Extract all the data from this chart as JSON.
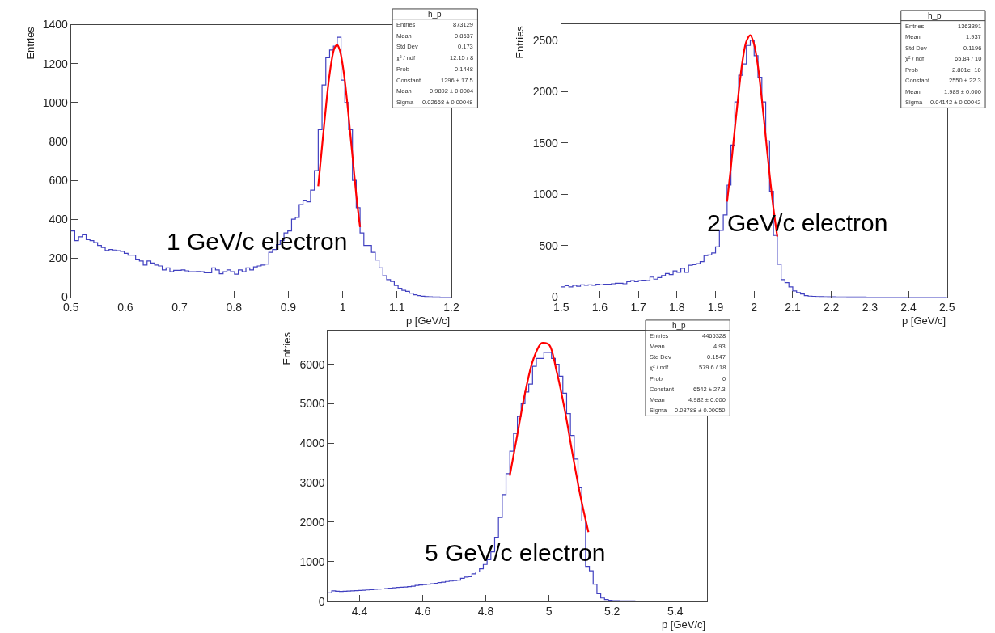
{
  "chart_data": [
    {
      "type": "histogram",
      "xlabel": "p [GeV/c]",
      "ylabel": "Entries",
      "color": "#4040c0",
      "xlim": [
        0.5,
        1.2
      ],
      "ylim": [
        0,
        1400
      ],
      "xticks": [
        0.5,
        0.6,
        0.7,
        0.8,
        0.9,
        1,
        1.1,
        1.2
      ],
      "yticks": [
        0,
        200,
        400,
        600,
        800,
        1000,
        1200,
        1400
      ],
      "bins": [
        0.5,
        0.507,
        0.514,
        0.521,
        0.528,
        0.535,
        0.542,
        0.549,
        0.556,
        0.563,
        0.57,
        0.577,
        0.584,
        0.591,
        0.598,
        0.605,
        0.612,
        0.619,
        0.626,
        0.633,
        0.64,
        0.647,
        0.654,
        0.661,
        0.668,
        0.675,
        0.682,
        0.689,
        0.696,
        0.703,
        0.71,
        0.717,
        0.724,
        0.731,
        0.738,
        0.745,
        0.752,
        0.759,
        0.766,
        0.773,
        0.78,
        0.787,
        0.794,
        0.801,
        0.808,
        0.815,
        0.822,
        0.829,
        0.836,
        0.843,
        0.85,
        0.857,
        0.864,
        0.871,
        0.878,
        0.885,
        0.892,
        0.899,
        0.906,
        0.913,
        0.92,
        0.927,
        0.934,
        0.941,
        0.948,
        0.955,
        0.962,
        0.969,
        0.976,
        0.983,
        0.99,
        0.997,
        1.004,
        1.011,
        1.018,
        1.025,
        1.032,
        1.039,
        1.046,
        1.053,
        1.06,
        1.067,
        1.074,
        1.081,
        1.088,
        1.095,
        1.102,
        1.109,
        1.116,
        1.123,
        1.13,
        1.137,
        1.144,
        1.151,
        1.158,
        1.165,
        1.172,
        1.179,
        1.186,
        1.193,
        1.2
      ],
      "values": [
        340,
        290,
        310,
        320,
        295,
        290,
        280,
        265,
        255,
        240,
        245,
        242,
        238,
        235,
        225,
        215,
        215,
        195,
        185,
        165,
        185,
        175,
        165,
        160,
        140,
        150,
        130,
        138,
        138,
        140,
        135,
        130,
        130,
        132,
        130,
        125,
        125,
        150,
        140,
        120,
        130,
        140,
        130,
        118,
        140,
        130,
        150,
        140,
        155,
        160,
        165,
        170,
        230,
        245,
        270,
        290,
        330,
        340,
        400,
        410,
        475,
        495,
        490,
        550,
        650,
        860,
        1090,
        1230,
        1270,
        1290,
        1335,
        1115,
        1000,
        860,
        600,
        460,
        330,
        265,
        265,
        230,
        190,
        150,
        110,
        90,
        80,
        60,
        45,
        35,
        30,
        20,
        12,
        8,
        5,
        3,
        2,
        1,
        1,
        0,
        0,
        0
      ],
      "series": [
        {
          "type": "line",
          "color": "#ff0000",
          "x": [
            0.955,
            0.96,
            0.965,
            0.97,
            0.975,
            0.98,
            0.985,
            0.99,
            0.995,
            1.0,
            1.005,
            1.01,
            1.015,
            1.02,
            1.025,
            1.03,
            1.032
          ],
          "values": [
            570,
            715,
            860,
            1000,
            1125,
            1220,
            1280,
            1296,
            1266,
            1193,
            1088,
            955,
            812,
            670,
            526,
            405,
            360
          ]
        }
      ],
      "annotations": [
        "h_p",
        "Entries",
        "873129",
        "Mean",
        "0.8637",
        "Std Dev",
        "0.173",
        "χ² / ndf",
        "12.15 / 8",
        "Prob",
        "0.1448",
        "Constant",
        "1296 ± 17.5",
        "Mean",
        "0.9892 ± 0.0004",
        "Sigma",
        "0.02668 ± 0.00048",
        "1 GeV/c electron"
      ]
    },
    {
      "type": "histogram",
      "xlabel": "p [GeV/c]",
      "ylabel": "Entries",
      "color": "#4040c0",
      "xlim": [
        1.5,
        2.5
      ],
      "ylim": [
        0,
        2660
      ],
      "xticks": [
        1.5,
        1.6,
        1.7,
        1.8,
        1.9,
        2,
        2.1,
        2.2,
        2.3,
        2.4,
        2.5
      ],
      "yticks": [
        0,
        500,
        1000,
        1500,
        2000,
        2500
      ],
      "bins": [
        1.5,
        1.51,
        1.52,
        1.53,
        1.54,
        1.55,
        1.56,
        1.57,
        1.58,
        1.59,
        1.6,
        1.61,
        1.62,
        1.63,
        1.64,
        1.65,
        1.66,
        1.67,
        1.68,
        1.69,
        1.7,
        1.71,
        1.72,
        1.73,
        1.74,
        1.75,
        1.76,
        1.77,
        1.78,
        1.79,
        1.8,
        1.81,
        1.82,
        1.83,
        1.84,
        1.85,
        1.86,
        1.87,
        1.88,
        1.89,
        1.9,
        1.91,
        1.92,
        1.93,
        1.94,
        1.95,
        1.96,
        1.97,
        1.98,
        1.99,
        2.0,
        2.01,
        2.02,
        2.03,
        2.04,
        2.05,
        2.06,
        2.07,
        2.08,
        2.09,
        2.1,
        2.11,
        2.12,
        2.13,
        2.14,
        2.15,
        2.16,
        2.17,
        2.18,
        2.19,
        2.2,
        2.21,
        2.22,
        2.23,
        2.24,
        2.25,
        2.26,
        2.27,
        2.28,
        2.29,
        2.3,
        2.31,
        2.32,
        2.33,
        2.34,
        2.35,
        2.36,
        2.37,
        2.38,
        2.39,
        2.4,
        2.41,
        2.42,
        2.43,
        2.44,
        2.45,
        2.46,
        2.47,
        2.48,
        2.49,
        2.5
      ],
      "values": [
        100,
        110,
        100,
        115,
        105,
        120,
        115,
        120,
        115,
        125,
        120,
        125,
        125,
        130,
        135,
        135,
        130,
        150,
        160,
        150,
        160,
        165,
        160,
        195,
        175,
        190,
        210,
        230,
        220,
        255,
        240,
        280,
        240,
        310,
        315,
        325,
        345,
        405,
        410,
        430,
        490,
        650,
        800,
        1090,
        1480,
        1900,
        2160,
        2270,
        2450,
        2500,
        2350,
        2140,
        1900,
        1520,
        1030,
        600,
        320,
        170,
        140,
        100,
        60,
        45,
        30,
        15,
        10,
        8,
        6,
        5,
        4,
        3,
        3,
        2,
        2,
        2,
        1,
        1,
        1,
        1,
        1,
        0,
        0,
        0,
        0,
        0,
        0,
        0,
        0,
        0,
        0,
        0,
        0,
        0,
        0,
        0,
        0,
        0,
        0,
        0,
        0,
        0
      ],
      "series": [
        {
          "type": "line",
          "color": "#ff0000",
          "x": [
            1.93,
            1.94,
            1.95,
            1.96,
            1.97,
            1.98,
            1.99,
            2.0,
            2.01,
            2.02,
            2.03,
            2.04,
            2.05,
            2.06
          ],
          "values": [
            930,
            1270,
            1640,
            1995,
            2300,
            2490,
            2550,
            2460,
            2245,
            1925,
            1560,
            1195,
            865,
            590
          ]
        }
      ],
      "annotations": [
        "h_p",
        "Entries",
        "1363391",
        "Mean",
        "1.937",
        "Std Dev",
        "0.1196",
        "χ² / ndf",
        "65.84 / 10",
        "Prob",
        "2.801e−10",
        "Constant",
        "2550 ± 22.3",
        "Mean",
        "1.989 ± 0.000",
        "Sigma",
        "0.04142 ± 0.00042",
        "2 GeV/c electron"
      ]
    },
    {
      "type": "histogram",
      "xlabel": "p [GeV/c]",
      "ylabel": "Entries",
      "color": "#4040c0",
      "xlim": [
        4.3,
        5.5
      ],
      "ylim": [
        0,
        6860
      ],
      "xticks": [
        4.4,
        4.6,
        4.8,
        5,
        5.2,
        5.4
      ],
      "yticks": [
        0,
        1000,
        2000,
        3000,
        4000,
        5000,
        6000
      ],
      "bins": [
        4.3,
        4.312,
        4.324,
        4.336,
        4.348,
        4.36,
        4.372,
        4.384,
        4.396,
        4.408,
        4.42,
        4.432,
        4.444,
        4.456,
        4.468,
        4.48,
        4.492,
        4.504,
        4.516,
        4.528,
        4.54,
        4.552,
        4.564,
        4.576,
        4.588,
        4.6,
        4.612,
        4.624,
        4.636,
        4.648,
        4.66,
        4.672,
        4.684,
        4.696,
        4.708,
        4.72,
        4.732,
        4.744,
        4.756,
        4.768,
        4.78,
        4.792,
        4.804,
        4.816,
        4.828,
        4.84,
        4.852,
        4.864,
        4.876,
        4.888,
        4.9,
        4.912,
        4.924,
        4.936,
        4.948,
        4.96,
        4.972,
        4.984,
        4.996,
        5.008,
        5.02,
        5.032,
        5.044,
        5.056,
        5.068,
        5.08,
        5.092,
        5.104,
        5.116,
        5.128,
        5.14,
        5.152,
        5.164,
        5.176,
        5.188,
        5.2,
        5.212,
        5.224,
        5.236,
        5.248,
        5.26,
        5.272,
        5.284,
        5.296,
        5.308,
        5.32,
        5.332,
        5.344,
        5.356,
        5.368,
        5.38,
        5.392,
        5.404,
        5.416,
        5.428,
        5.44,
        5.452,
        5.464,
        5.476,
        5.488,
        5.5
      ],
      "values": [
        210,
        260,
        250,
        245,
        250,
        255,
        260,
        265,
        270,
        275,
        285,
        290,
        300,
        305,
        310,
        320,
        330,
        340,
        350,
        355,
        360,
        370,
        380,
        400,
        410,
        420,
        430,
        440,
        450,
        470,
        480,
        500,
        510,
        520,
        530,
        580,
        610,
        620,
        690,
        740,
        820,
        930,
        1050,
        1250,
        1620,
        2120,
        2700,
        3230,
        3800,
        4250,
        4680,
        5000,
        5300,
        5500,
        5950,
        6150,
        6150,
        6300,
        6300,
        6150,
        6000,
        5700,
        5270,
        4750,
        4200,
        3600,
        2870,
        2030,
        880,
        770,
        430,
        190,
        80,
        40,
        20,
        12,
        10,
        8,
        6,
        5,
        4,
        3,
        3,
        2,
        2,
        2,
        1,
        1,
        1,
        1,
        1,
        0,
        0,
        0,
        0,
        0,
        0,
        0,
        0,
        0
      ],
      "series": [
        {
          "type": "line",
          "color": "#ff0000",
          "x": [
            4.876,
            4.9,
            4.925,
            4.95,
            4.975,
            4.982,
            5.0,
            5.025,
            5.05,
            5.075,
            5.1,
            5.125
          ],
          "values": [
            3180,
            4230,
            5300,
            6120,
            6530,
            6542,
            6500,
            5800,
            4850,
            3720,
            2650,
            1750
          ]
        }
      ],
      "annotations": [
        "h_p",
        "Entries",
        "4465328",
        "Mean",
        "4.93",
        "Std Dev",
        "0.1547",
        "χ² / ndf",
        "579.6 / 18",
        "Prob",
        "0",
        "Constant",
        "6542 ± 27.3",
        "Mean",
        "4.982 ± 0.000",
        "Sigma",
        "0.08788 ± 0.00050",
        "5 GeV/c electron"
      ]
    }
  ]
}
